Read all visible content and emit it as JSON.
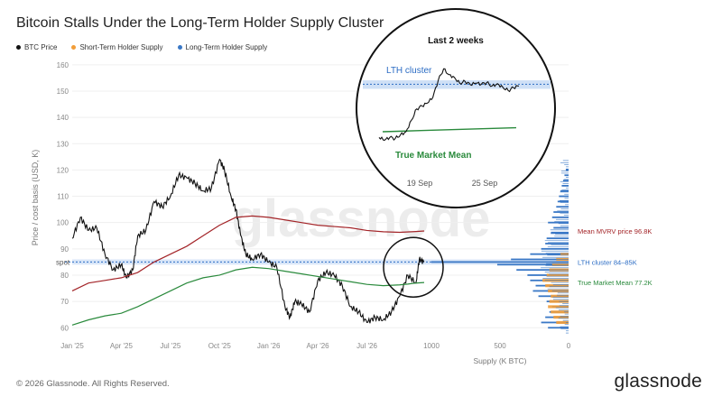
{
  "title": "Bitcoin Stalls Under the Long-Term Holder Supply Cluster",
  "legend": [
    {
      "label": "BTC Price",
      "color": "#111111"
    },
    {
      "label": "Short-Term Holder Supply",
      "color": "#f29d38"
    },
    {
      "label": "Long-Term Holder Supply",
      "color": "#3a78c6"
    }
  ],
  "footer": {
    "copyright": "© 2026 Glassnode. All Rights Reserved.",
    "logo": "glassnode"
  },
  "watermark": "glassnode",
  "chart_data": {
    "type": "line",
    "ylabel": "Price / cost basis (USD, K)",
    "xlabel_right": "Supply (K BTC)",
    "ylim": [
      57,
      162
    ],
    "y_ticks": [
      60,
      70,
      80,
      90,
      100,
      110,
      120,
      130,
      140,
      150,
      160
    ],
    "x_ticks": [
      "Jan '25",
      "Apr '25",
      "Jul '25",
      "Oct '25",
      "Jan '26",
      "Apr '26",
      "Jul '26"
    ],
    "x_tick_pos": [
      0,
      3,
      6,
      9,
      12,
      15,
      18
    ],
    "supply_ticks": [
      "1000",
      "500",
      "0"
    ],
    "supply_tick_vals": [
      1000,
      500,
      0
    ],
    "spot_label": "spot",
    "spot_value": 85,
    "series": [
      {
        "name": "BTC Price",
        "color": "#111111",
        "months": [
          0,
          0.5,
          1,
          1.5,
          2,
          2.5,
          3,
          3.3,
          3.7,
          4,
          4.5,
          5,
          5.5,
          6,
          6.5,
          7,
          7.5,
          8,
          8.5,
          9,
          9.3,
          9.7,
          10,
          10.3,
          10.6,
          11,
          11.5,
          12,
          12.5,
          13,
          13.3,
          13.6,
          14,
          14.5,
          15,
          15.5,
          16,
          16.5,
          17,
          17.5,
          18,
          18.5,
          19,
          19.5,
          20,
          20.5,
          21,
          21.2,
          21.5
        ],
        "values": [
          94,
          102,
          97,
          98,
          88,
          82,
          84,
          79,
          82,
          95,
          97,
          108,
          106,
          110,
          118,
          117,
          115,
          112,
          113,
          124,
          120,
          110,
          105,
          95,
          88,
          86,
          88,
          85,
          83,
          68,
          64,
          70,
          69,
          66,
          78,
          81,
          80,
          76,
          68,
          66,
          62,
          64,
          63,
          66,
          72,
          80,
          77,
          86,
          85
        ]
      },
      {
        "name": "Mean MVRV price",
        "color": "#a32428",
        "months": [
          0,
          1,
          2,
          3,
          4,
          5,
          6,
          7,
          8,
          9,
          10,
          11,
          12,
          13,
          14,
          15,
          16,
          17,
          18,
          19,
          20,
          21,
          21.5
        ],
        "values": [
          74,
          77,
          78,
          79,
          81,
          85,
          88,
          91,
          95,
          99,
          102,
          102.5,
          102,
          101,
          100,
          99,
          98.5,
          98,
          97,
          96.5,
          96.3,
          96.6,
          96.8
        ]
      },
      {
        "name": "True Market Mean",
        "color": "#2a8a3c",
        "months": [
          0,
          1,
          2,
          3,
          4,
          5,
          6,
          7,
          8,
          9,
          10,
          11,
          12,
          13,
          14,
          15,
          16,
          17,
          18,
          19,
          20,
          20.5,
          21,
          21.5
        ],
        "values": [
          61,
          63,
          64.5,
          65.5,
          68,
          71,
          74,
          77,
          79,
          80,
          82,
          83,
          82.5,
          81.5,
          80.5,
          79.5,
          78.5,
          77.5,
          76.5,
          76,
          76.3,
          76.6,
          77,
          77.2
        ]
      }
    ],
    "supply_profile": {
      "lth_prices": [
        60,
        62,
        64,
        66,
        68,
        70,
        72,
        74,
        76,
        78,
        80,
        82,
        84,
        85,
        86,
        88,
        90,
        92,
        94,
        96,
        98,
        100,
        102,
        104,
        106,
        108,
        110,
        112,
        114,
        116,
        118,
        120
      ],
      "lth_values": [
        150,
        200,
        170,
        140,
        120,
        160,
        220,
        260,
        240,
        280,
        300,
        380,
        520,
        1000,
        420,
        280,
        200,
        170,
        160,
        130,
        110,
        150,
        120,
        110,
        90,
        80,
        70,
        60,
        50,
        40,
        30,
        20
      ],
      "sth_prices": [
        62,
        64,
        66,
        68,
        70,
        72,
        74,
        76,
        78,
        80,
        82,
        84,
        86,
        88
      ],
      "sth_values": [
        90,
        110,
        130,
        150,
        140,
        130,
        150,
        170,
        190,
        160,
        140,
        120,
        90,
        60
      ]
    },
    "annotations": [
      {
        "label": "Mean MVRV price 96.8K",
        "value": 96.8,
        "color": "#a32428"
      },
      {
        "label": "LTH cluster 84–85K",
        "value": 85,
        "color": "#2b6cc4"
      },
      {
        "label": "True Market Mean 77.2K",
        "value": 77.2,
        "color": "#2a8a3c"
      }
    ],
    "inset": {
      "title": "Last 2 weeks",
      "x_ticks": [
        "19 Sep",
        "25 Sep"
      ],
      "lth_label": "LTH cluster",
      "tmm_label": "True Market Mean",
      "price_values": [
        76,
        75.5,
        76,
        75.8,
        76.5,
        77,
        79,
        81,
        81.5,
        82,
        83,
        86,
        88,
        87,
        86.5,
        85.5,
        85.8,
        85.2,
        85.5,
        85.3,
        85.6,
        85,
        85.4,
        84.8,
        84.2,
        84.7,
        85
      ],
      "tmm_values": [
        77,
        77.1,
        77.2,
        77.3,
        77.4,
        77.5,
        77.6,
        77.7
      ]
    }
  }
}
